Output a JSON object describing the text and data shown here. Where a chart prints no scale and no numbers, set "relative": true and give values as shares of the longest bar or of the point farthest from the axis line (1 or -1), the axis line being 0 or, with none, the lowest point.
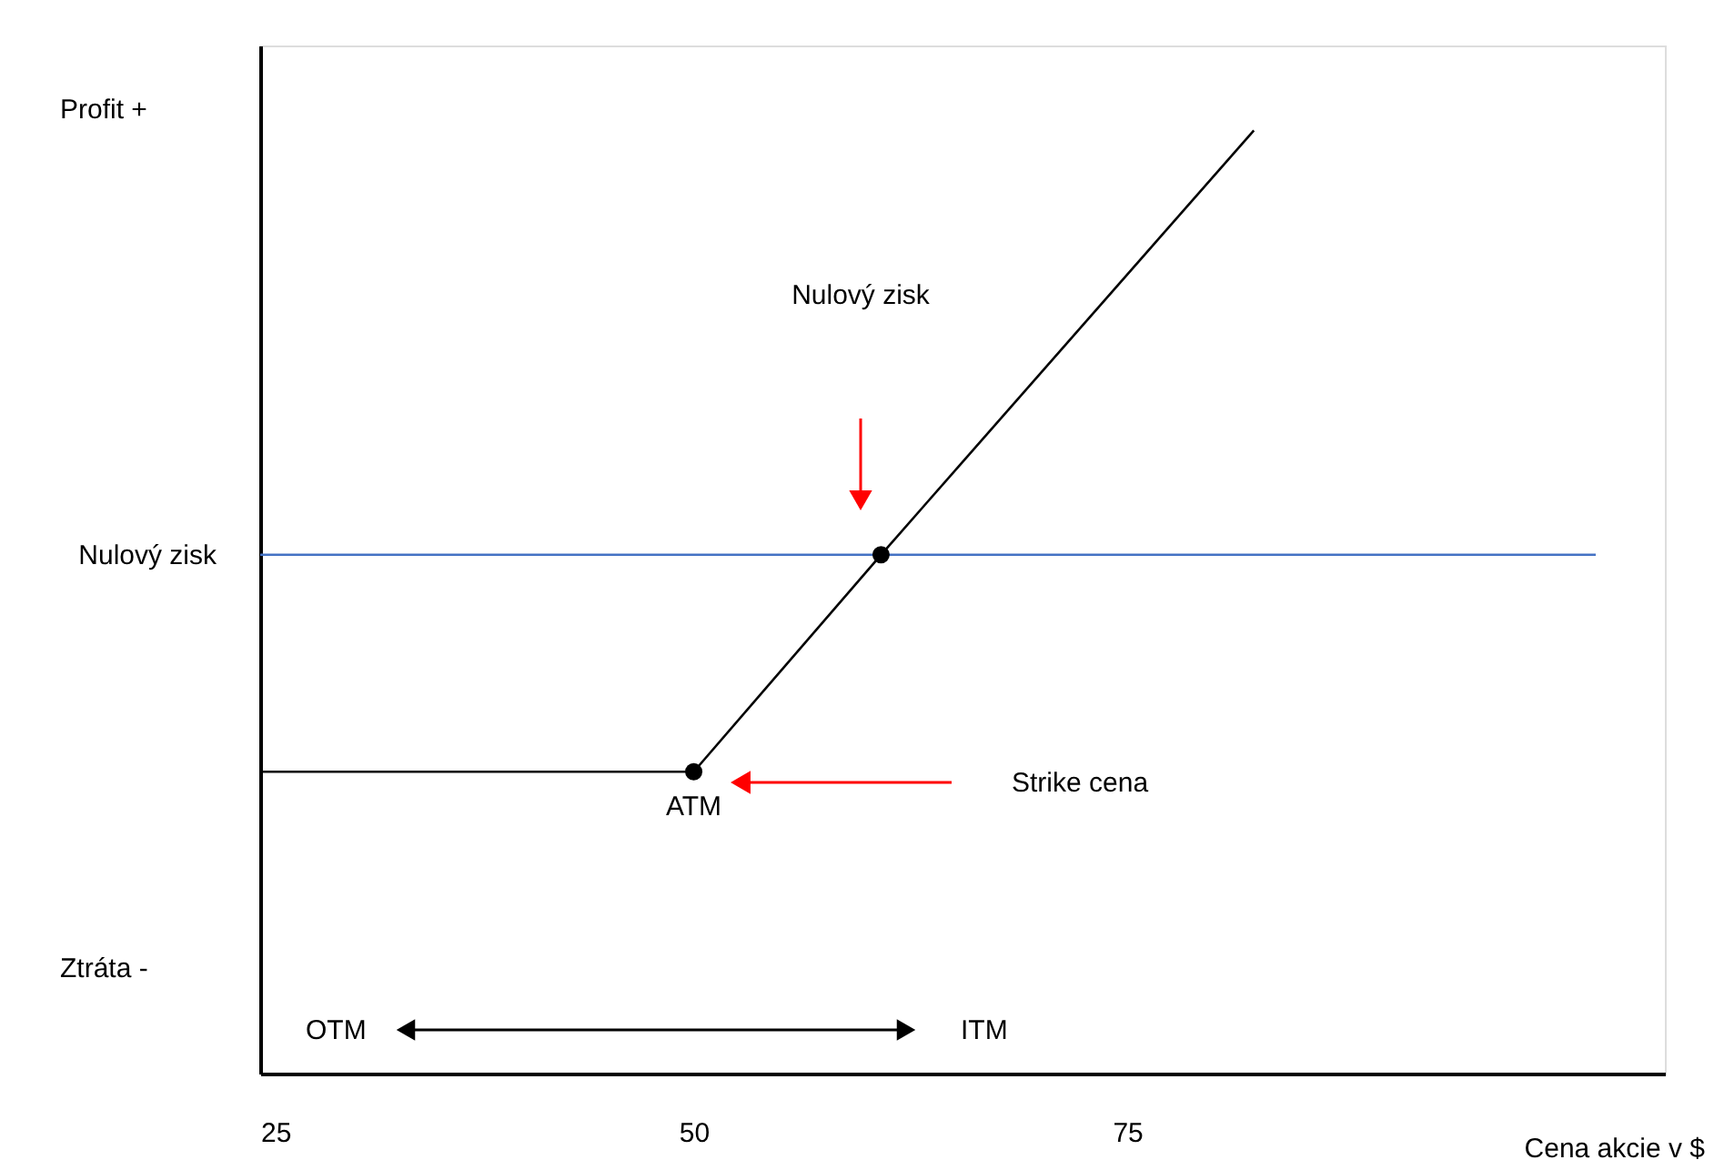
{
  "chart_data": {
    "type": "line",
    "relative": true,
    "xlabel": "Cena akcie v $",
    "xlim": [
      25,
      106
    ],
    "xticks": [
      25,
      50,
      75
    ],
    "grid": false,
    "tick_labels": "x",
    "series": [
      {
        "color": "#000000",
        "marker": "none",
        "x": [
          25,
          50,
          60.8,
          82.3
        ],
        "values": [
          0.32,
          0.32,
          0.55,
          1
        ]
      },
      {
        "type": "scatter",
        "color": "#000000",
        "marker": "circle",
        "x": [
          50,
          60.8
        ],
        "values": [
          0.32,
          0.55
        ]
      }
    ],
    "ref_lines": [
      {
        "axis": "y",
        "value": 0.55,
        "label": "Nulový zisk",
        "color": "#4472c4"
      }
    ],
    "annotations": [
      "Nulový zisk",
      "Strike cena",
      {
        "text": "ATM",
        "x": 50,
        "y": 0.32
      },
      "Profit +",
      "Ztráta -",
      "OTM",
      "ITM"
    ]
  }
}
